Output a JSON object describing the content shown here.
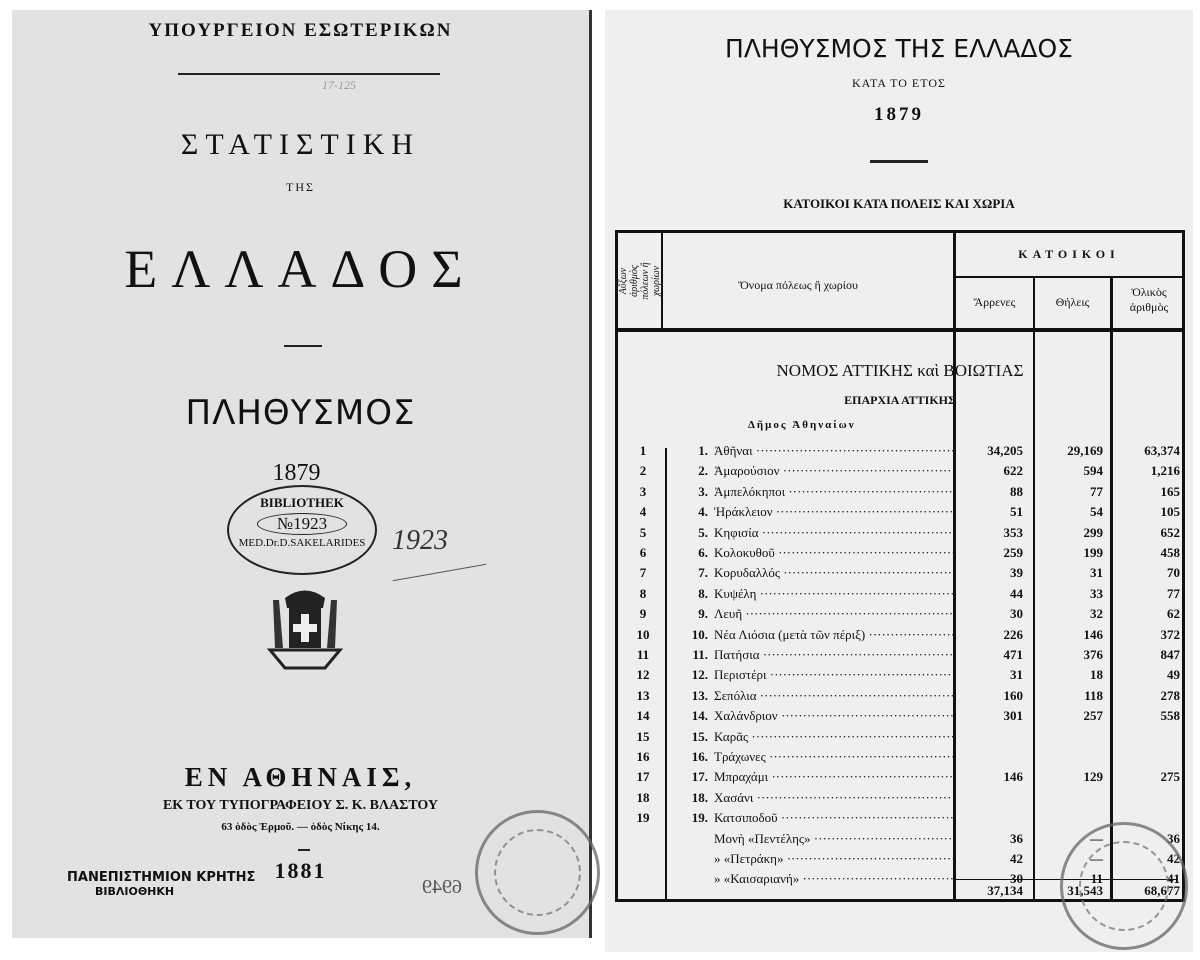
{
  "left_page": {
    "ministry": "ΥΠΟΥΡΓΕΙΟΝ ΕΣΩΤΕΡΙΚΩΝ",
    "pencil_note": "17-125",
    "title_1": "ΣΤΑΤΙΣΤΙΚΗ",
    "title_2": "ΤΗΣ",
    "title_3": "ΕΛΛΑΔΟΣ",
    "subject": "ΠΛΗΘΥΣΜΟΣ",
    "year": "1879",
    "library_stamp": {
      "top": "BIBLIOTHEK",
      "number": "№1923",
      "bottom": "MED.Dr.D.SAKELARIDES"
    },
    "handwritten_number": "1923",
    "place": "ΕΝ ΑΘΗΝΑΙΣ,",
    "printer": "ΕΚ ΤΟΥ ΤΥΠΟΓΡΑΦΕΙΟΥ Σ. Κ. ΒΛΑΣΤΟΥ",
    "address": "63 ὁδὸς Ἑρμοῦ. — ὁδὸς Νίκης 14.",
    "pub_year": "1881",
    "university_stamp": {
      "line1": "ΠΑΝΕΠΙΣΤΗΜΙΟΝ ΚΡΗΤΗΣ",
      "line2": "ΒΙΒΛΙΟΘΗΚΗ"
    },
    "shelf_mark": "6949"
  },
  "right_page": {
    "title": "ΠΛΗΘΥΣΜΟΣ ΤΗΣ ΕΛΛΑΔΟΣ",
    "subtitle": "ΚΑΤΑ ΤΟ ΕΤΟΣ",
    "year": "1879",
    "section": "ΚΑΤΟΙΚΟΙ ΚΑΤΑ ΠΟΛΕΙΣ ΚΑΙ ΧΩΡΙΑ",
    "table": {
      "col_index": "Αὔξων ἀριθμὸς πόλεων ἢ χωρίων",
      "col_name": "Ὄνομα πόλεως ἢ χωρίου",
      "group": "ΚΑΤΟΙΚΟΙ",
      "col_male": "Ἄρρενες",
      "col_female": "Θήλεις",
      "col_total": "Ὁλικὸς ἀριθμὸς",
      "nomos": "ΝΟΜΟΣ ΑΤΤΙΚΗΣ καὶ ΒΟΙΩΤΙΑΣ",
      "eparchia": "ΕΠΑΡΧΙΑ ΑΤΤΙΚΗΣ",
      "dimos": "Δῆμος Ἀθηναίων",
      "rows": [
        {
          "i": "1",
          "n": "1.",
          "name": "Ἀθῆναι",
          "m": "34,205",
          "f": "29,169",
          "t": "63,374"
        },
        {
          "i": "2",
          "n": "2.",
          "name": "Ἀμαρούσιον",
          "m": "622",
          "f": "594",
          "t": "1,216"
        },
        {
          "i": "3",
          "n": "3.",
          "name": "Ἀμπελόκηποι",
          "m": "88",
          "f": "77",
          "t": "165"
        },
        {
          "i": "4",
          "n": "4.",
          "name": "Ἡράκλειον",
          "m": "51",
          "f": "54",
          "t": "105"
        },
        {
          "i": "5",
          "n": "5.",
          "name": "Κηφισία",
          "m": "353",
          "f": "299",
          "t": "652"
        },
        {
          "i": "6",
          "n": "6.",
          "name": "Κολοκυθοῦ",
          "m": "259",
          "f": "199",
          "t": "458"
        },
        {
          "i": "7",
          "n": "7.",
          "name": "Κορυδαλλός",
          "m": "39",
          "f": "31",
          "t": "70"
        },
        {
          "i": "8",
          "n": "8.",
          "name": "Κυψέλη",
          "m": "44",
          "f": "33",
          "t": "77"
        },
        {
          "i": "9",
          "n": "9.",
          "name": "Λευῆ",
          "m": "30",
          "f": "32",
          "t": "62"
        },
        {
          "i": "10",
          "n": "10.",
          "name": "Νέα Λιόσια (μετὰ τῶν πέριξ)",
          "m": "226",
          "f": "146",
          "t": "372"
        },
        {
          "i": "11",
          "n": "11.",
          "name": "Πατήσια",
          "m": "471",
          "f": "376",
          "t": "847"
        },
        {
          "i": "12",
          "n": "12.",
          "name": "Περιστέρι",
          "m": "31",
          "f": "18",
          "t": "49"
        },
        {
          "i": "13",
          "n": "13.",
          "name": "Σεπόλια",
          "m": "160",
          "f": "118",
          "t": "278"
        },
        {
          "i": "14",
          "n": "14.",
          "name": "Χαλάνδριον",
          "m": "301",
          "f": "257",
          "t": "558"
        },
        {
          "i": "15",
          "n": "15.",
          "name": "Καρᾶς",
          "m": "",
          "f": "",
          "t": ""
        },
        {
          "i": "16",
          "n": "16.",
          "name": "Τράχωνες",
          "m": "",
          "f": "",
          "t": ""
        },
        {
          "i": "17",
          "n": "17.",
          "name": "Μπραχάμι",
          "m": "146",
          "f": "129",
          "t": "275"
        },
        {
          "i": "18",
          "n": "18.",
          "name": "Χασάνι",
          "m": "",
          "f": "",
          "t": ""
        },
        {
          "i": "19",
          "n": "19.",
          "name": "Κατσιποδοῦ",
          "m": "",
          "f": "",
          "t": ""
        },
        {
          "i": "",
          "n": "",
          "name": "Μονὴ «Πεντέλης»",
          "m": "36",
          "f": "—",
          "t": "36"
        },
        {
          "i": "",
          "n": "",
          "name": "  »  «Πετράκη»",
          "m": "42",
          "f": "—",
          "t": "42"
        },
        {
          "i": "",
          "n": "",
          "name": "  »  «Καισαριανή»",
          "m": "30",
          "f": "11",
          "t": "41"
        }
      ],
      "totals": {
        "m": "37,134",
        "f": "31,543",
        "t": "68,677"
      }
    }
  }
}
